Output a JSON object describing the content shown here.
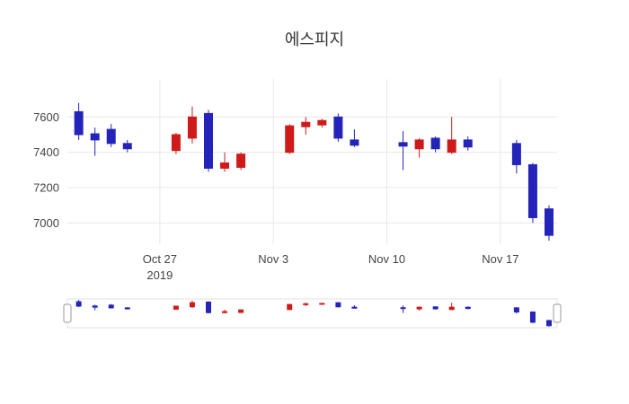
{
  "chart_data": {
    "type": "candlestick",
    "title": "에스피지",
    "increasing_color": "#cf1a1a",
    "decreasing_color": "#2424bb",
    "grid_color": "#e8e8e8",
    "tick_color": "#444444",
    "background_color": "#ffffff",
    "legend": "none",
    "grid": "on",
    "y_ticks": [
      7000,
      7200,
      7400,
      7600
    ],
    "x_ticks": [
      {
        "x": 6,
        "label": "Oct 27",
        "sublabel": "2019"
      },
      {
        "x": 13,
        "label": "Nov 3",
        "sublabel": ""
      },
      {
        "x": 20,
        "label": "Nov 10",
        "sublabel": ""
      },
      {
        "x": 27,
        "label": "Nov 17",
        "sublabel": ""
      }
    ],
    "xlim": [
      0.3,
      30.5
    ],
    "ylim": [
      6880,
      7815
    ],
    "candles": [
      {
        "x": 1,
        "open": 7630,
        "high": 7680,
        "low": 7470,
        "close": 7500
      },
      {
        "x": 2,
        "open": 7505,
        "high": 7540,
        "low": 7380,
        "close": 7470
      },
      {
        "x": 3,
        "open": 7530,
        "high": 7560,
        "low": 7430,
        "close": 7450
      },
      {
        "x": 4,
        "open": 7450,
        "high": 7470,
        "low": 7400,
        "close": 7420
      },
      {
        "x": 7,
        "open": 7410,
        "high": 7510,
        "low": 7390,
        "close": 7500
      },
      {
        "x": 8,
        "open": 7480,
        "high": 7660,
        "low": 7450,
        "close": 7600
      },
      {
        "x": 9,
        "open": 7620,
        "high": 7640,
        "low": 7290,
        "close": 7310
      },
      {
        "x": 10,
        "open": 7310,
        "high": 7400,
        "low": 7290,
        "close": 7340
      },
      {
        "x": 11,
        "open": 7315,
        "high": 7400,
        "low": 7300,
        "close": 7390
      },
      {
        "x": 14,
        "open": 7400,
        "high": 7560,
        "low": 7390,
        "close": 7550
      },
      {
        "x": 15,
        "open": 7545,
        "high": 7600,
        "low": 7500,
        "close": 7570
      },
      {
        "x": 16,
        "open": 7555,
        "high": 7590,
        "low": 7540,
        "close": 7580
      },
      {
        "x": 17,
        "open": 7600,
        "high": 7620,
        "low": 7460,
        "close": 7480
      },
      {
        "x": 18,
        "open": 7470,
        "high": 7530,
        "low": 7430,
        "close": 7440
      },
      {
        "x": 21,
        "open": 7455,
        "high": 7520,
        "low": 7300,
        "close": 7435
      },
      {
        "x": 22,
        "open": 7420,
        "high": 7480,
        "low": 7370,
        "close": 7470
      },
      {
        "x": 23,
        "open": 7480,
        "high": 7490,
        "low": 7400,
        "close": 7420
      },
      {
        "x": 24,
        "open": 7400,
        "high": 7600,
        "low": 7390,
        "close": 7470
      },
      {
        "x": 25,
        "open": 7470,
        "high": 7490,
        "low": 7410,
        "close": 7430
      },
      {
        "x": 28,
        "open": 7450,
        "high": 7470,
        "low": 7280,
        "close": 7330
      },
      {
        "x": 29,
        "open": 7330,
        "high": 7340,
        "low": 7000,
        "close": 7030
      },
      {
        "x": 30,
        "open": 7080,
        "high": 7100,
        "low": 6900,
        "close": 6930
      }
    ],
    "rangeslider": true
  }
}
